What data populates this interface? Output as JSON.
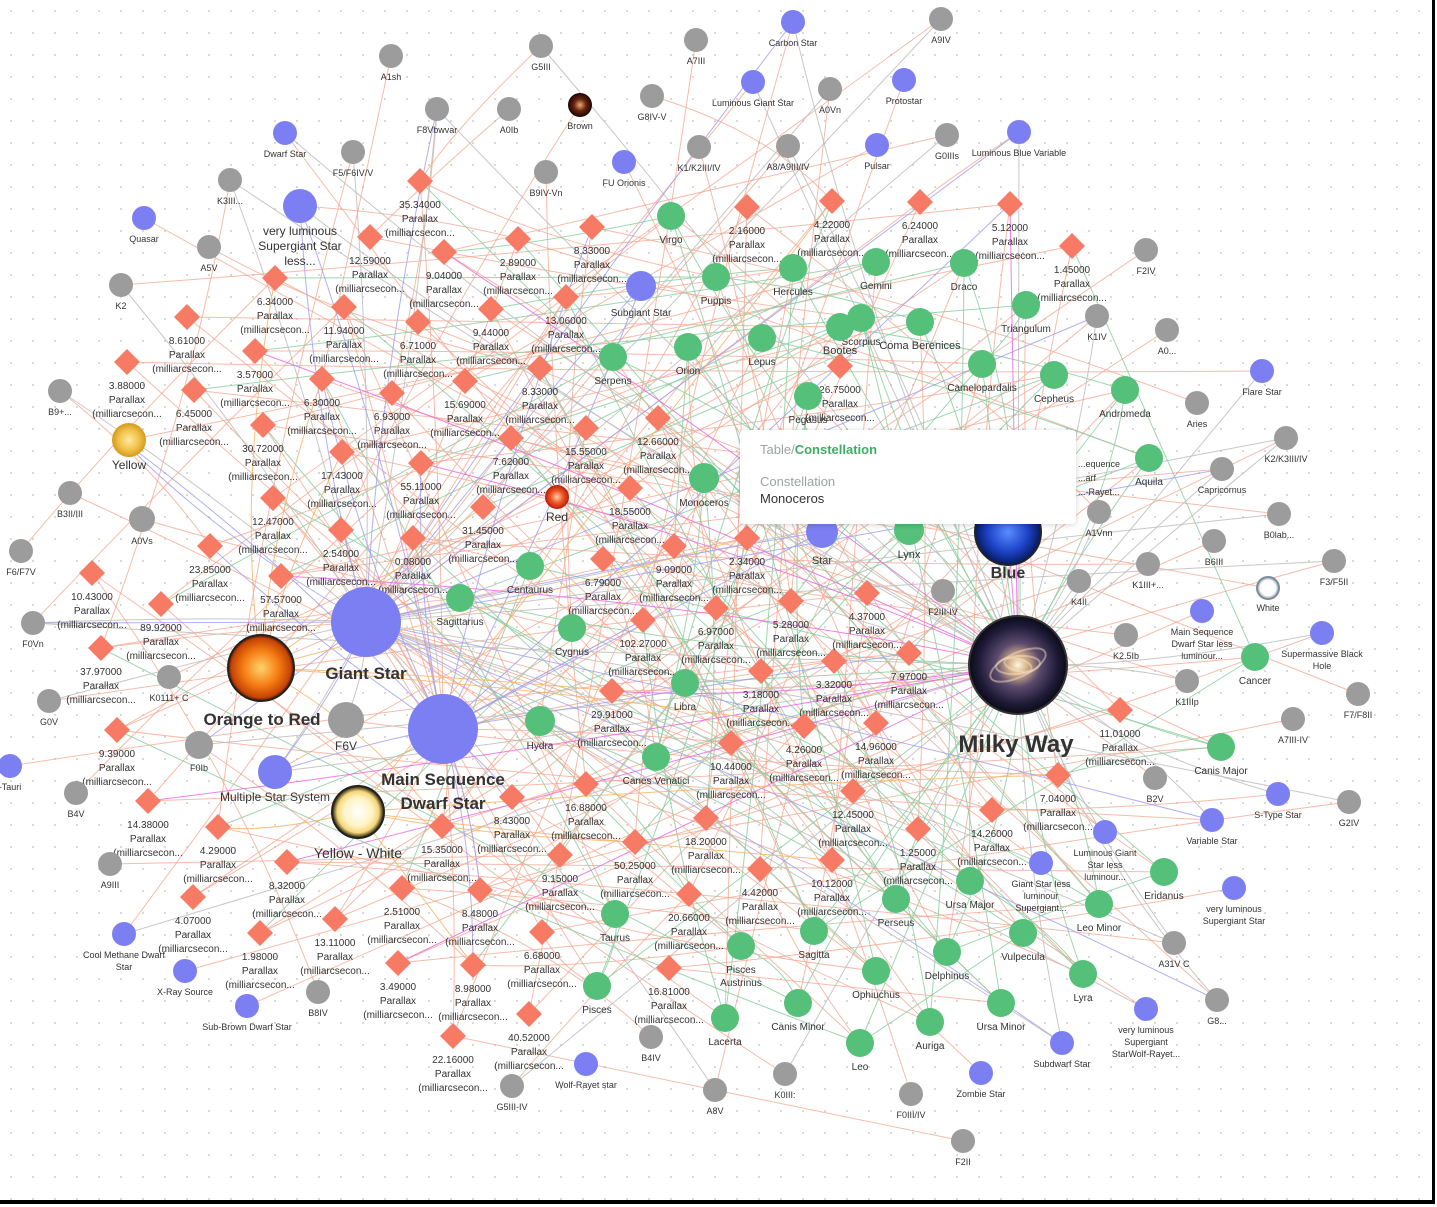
{
  "tooltip": {
    "table": "Table",
    "table_name": "Constellation",
    "key": "Constellation",
    "value": "Monoceros"
  },
  "colors": {
    "parallax": "#f67a64",
    "constellation": "#55c07a",
    "category": "#7b7ff2",
    "star": "#9c9c9c",
    "edge_red": "#f4a48c",
    "edge_green": "#86cc9c",
    "edge_blue": "#9e9cf0",
    "edge_magenta": "#e86ce0",
    "edge_orange": "#f6b46a"
  },
  "parallax_unit": [
    "Parallax",
    "(milliarcsecon..."
  ],
  "parallax_values": [
    "35.34000",
    "12.59000",
    "9.04000",
    "2.89000",
    "8.33000",
    "6.34000",
    "11.94000",
    "6.71000",
    "9.44000",
    "13.06000",
    "8.61000",
    "3.57000",
    "6.30000",
    "6.93000",
    "15.69000",
    "8.33000",
    "3.88000",
    "6.45000",
    "30.72000",
    "17.43000",
    "55.11000",
    "7.62000",
    "15.55000",
    "12.66000",
    "12.47000",
    "2.54000",
    "31.45000",
    "18.55000",
    "23.85000",
    "57.57000",
    "0.08000",
    "6.79000",
    "9.09000",
    "2.34000",
    "10.43000",
    "89.92000",
    "102.27000",
    "6.97000",
    "5.28000",
    "37.97000",
    "29.91000",
    "3.18000",
    "3.32000",
    "4.37000",
    "7.97000",
    "9.39000",
    "14.96000",
    "4.26000",
    "10.44000",
    "14.38000",
    "4.29000",
    "16.88000",
    "8.43000",
    "18.20000",
    "15.35000",
    "12.45000",
    "50.25000",
    "9.15000",
    "8.32000",
    "2.51000",
    "8.48000",
    "4.42000",
    "10.12000",
    "1.25000",
    "4.07000",
    "1.98000",
    "13.11000",
    "3.49000",
    "8.98000",
    "6.68000",
    "16.81000",
    "20.66000",
    "22.16000",
    "40.52000",
    "4.22000",
    "6.24000",
    "5.12000",
    "1.45000",
    "2.16000",
    "26.75000",
    "7.04000",
    "14.26000",
    "11.01000"
  ],
  "stars": [
    "Carbon Star",
    "A9IV",
    "A1sh",
    "G5III",
    "A7III",
    "A0Vn",
    "Luminous Giant Star",
    "Protostar",
    "Brown",
    "F8Vbwvar",
    "A0Ib",
    "G8IV-V",
    "Dwarf Star",
    "F5/F6IV/V",
    "K1/K2III/IV",
    "A8/A9III/IV",
    "Pulsar",
    "G0IIIs",
    "Luminous Blue Variable",
    "FU Orionis",
    "B9IV-Vn",
    "K3III...",
    "Quasar",
    "A5V",
    "very luminous Supergiant Star less...",
    "K2",
    "F2IV",
    "K1IV",
    "A0...",
    "B9+...",
    "Flare Star",
    "Aries",
    "Yellow",
    "K2/K3III/IV",
    "B3II/III",
    "A0Vs",
    "Capricornus",
    "B0lab...",
    "F6/F7V",
    "A1Vnn",
    "B6III",
    "F3/F5II",
    "K4II",
    "K1III+...",
    "White",
    "F0Vn",
    "K0111+ C",
    "Main Sequence Dwarf Star less luminour...",
    "Supermassive Black Hole",
    "G0V",
    "K2.5Ib",
    "K1IIIp",
    "F7/F8II",
    "F6V",
    "F0Ib",
    "A7III-IV",
    "-Tauri",
    "Multiple Star System",
    "B4V",
    "B2V",
    "S-Type Star",
    "G2IV",
    "A9III",
    "Variable Star",
    "Luminous Giant Star less luminour...",
    "Giant Star less luminour Supergiant...",
    "Cool Methane Dwarf Star",
    "X-Ray Source",
    "very luminous Supergiant Star",
    "A31V C",
    "Sub-Brown Dwarf Star",
    "B8IV",
    "G8...",
    "very luminous Supergiant StarWolf-Rayet...",
    "Wolf-Rayet star",
    "G5III-IV",
    "B4IV",
    "A8V",
    "K0III:",
    "F0III/IV",
    "Zombie Star",
    "Subdwarf Star",
    "F2II",
    "F2III-IV",
    "Red"
  ],
  "constellations": [
    "Virgo",
    "Puppis",
    "Hercules",
    "Gemini",
    "Draco",
    "Triangulum",
    "Scorpius",
    "Bootes",
    "Coma Berenices",
    "Lepus",
    "Orion",
    "Serpens",
    "Camelopardalis",
    "Cepheus",
    "Andromeda",
    "Pegasus",
    "Aquila",
    "Monoceros",
    "Lynx",
    "Centaurus",
    "Sagittarius",
    "Cygnus",
    "Libra",
    "Hydra",
    "Canes Venatici",
    "Cancer",
    "Canis Major",
    "Eridanus",
    "Leo Minor",
    "Ursa Major",
    "Perseus",
    "Taurus",
    "Sagitta",
    "Pisces Austrinus",
    "Delphinus",
    "Vulpecula",
    "Lyra",
    "Ophiuchus",
    "Pisces",
    "Lacerta",
    "Canis Minor",
    "Auriga",
    "Leo",
    "Ursa Minor"
  ],
  "categories": [
    "Giant Star",
    "Main Sequence Dwarf Star",
    "Subgiant Star",
    "Star"
  ],
  "colors_of_stars": [
    "Orange to Red",
    "Yellow - White",
    "Blue"
  ],
  "galaxy": "Milky Way",
  "sequence_fragment": [
    "...equence",
    "...arf",
    "...-Rayet..."
  ]
}
